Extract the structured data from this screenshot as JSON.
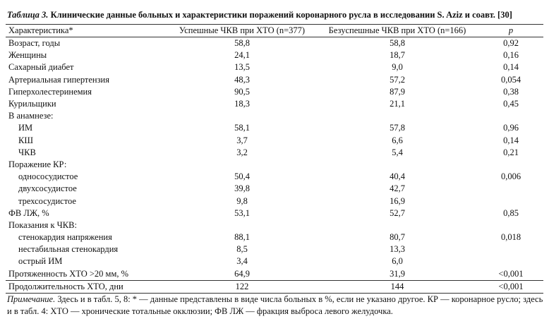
{
  "title": {
    "label": "Таблица 3.",
    "text": "Клинические данные больных и характеристики поражений коронарного русла в исследовании S. Aziz и соавт. [30]"
  },
  "table": {
    "header": [
      "Характеристика*",
      "Успешные ЧКВ при ХТО (n=377)",
      "Безуспешные ЧКВ при ХТО (n=166)",
      "p"
    ],
    "rows": [
      {
        "label": "Возраст, годы",
        "values": [
          "58,8",
          "58,8",
          "0,92"
        ]
      },
      {
        "label": "Женщины",
        "values": [
          "24,1",
          "18,7",
          "0,16"
        ]
      },
      {
        "label": "Сахарный диабет",
        "values": [
          "13,5",
          "9,0",
          "0,14"
        ]
      },
      {
        "label": "Артериальная гипертензия",
        "values": [
          "48,3",
          "57,2",
          "0,054"
        ]
      },
      {
        "label": "Гиперхолестеринемия",
        "values": [
          "90,5",
          "87,9",
          "0,38"
        ]
      },
      {
        "label": "Курильщики",
        "values": [
          "18,3",
          "21,1",
          "0,45"
        ]
      },
      {
        "label": "В анамнезе:",
        "rows": [
          {
            "label": "ИМ",
            "values": [
              "58,1",
              "57,8",
              "0,96"
            ]
          },
          {
            "label": "КШ",
            "values": [
              "3,7",
              "6,6",
              "0,14"
            ]
          },
          {
            "label": "ЧКВ",
            "values": [
              "3,2",
              "5,4",
              "0,21"
            ]
          }
        ]
      },
      {
        "label": "Поражение КР:",
        "rows": [
          {
            "label": "однососудистое",
            "values": [
              "50,4",
              "40,4",
              "0,006"
            ]
          },
          {
            "label": "двухсосудистое",
            "values": [
              "39,8",
              "42,7"
            ]
          },
          {
            "label": "трехсосудистое",
            "values": [
              "9,8",
              "16,9"
            ]
          }
        ]
      },
      {
        "label": "ФВ ЛЖ, %",
        "values": [
          "53,1",
          "52,7",
          "0,85"
        ]
      },
      {
        "label": "Показания к ЧКВ:",
        "rows": [
          {
            "label": "стенокардия напряжения",
            "values": [
              "88,1",
              "80,7",
              "0,018"
            ]
          },
          {
            "label": "нестабильная стенокардия",
            "values": [
              "8,5",
              "13,3"
            ]
          },
          {
            "label": "острый ИМ",
            "values": [
              "3,4",
              "6,0"
            ]
          }
        ]
      },
      {
        "label": "Протяженность ХТО >20 мм, %",
        "values": [
          "64,9",
          "31,9",
          "<0,001"
        ]
      },
      {
        "label": "Продолжительность ХТО, дни",
        "values": [
          "122",
          "144",
          "<0,001"
        ]
      }
    ]
  },
  "note": {
    "label": "Примечание.",
    "text": "Здесь и в табл. 5, 8: * — данные представлены в виде числа больных в %, если не указано другое. КР — коронарное русло; здесь и в табл. 4: ХТО — хронические тотальные окклюзии; ФВ ЛЖ — фракция выброса левого желудочка."
  }
}
